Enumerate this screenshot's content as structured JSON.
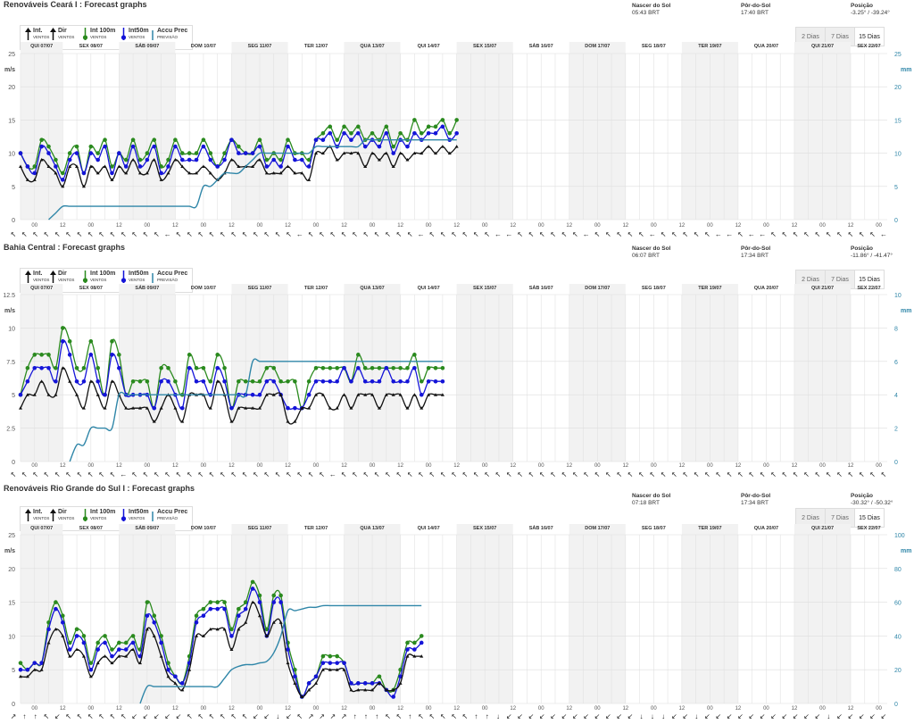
{
  "ranges": {
    "days": "2 Dias",
    "week": "7 Dias",
    "fifteen": "15 Dias",
    "active": "15 Dias"
  },
  "legend": {
    "int": "Int.",
    "int_sub": "VENTOS",
    "dir": "Dir",
    "dir_sub": "VENTOS",
    "int100": "Int 100m",
    "int100_sub": "VENTOS",
    "int50": "Int50m",
    "int50_sub": "VENTOS",
    "accu": "Accu Prec",
    "accu_sub": "PREVISÃO"
  },
  "colors": {
    "int": "#111111",
    "int100": "#2a8a1e",
    "int50": "#1414d8",
    "accu": "#2f86a8"
  },
  "days": [
    "QUI 07/07",
    "SEX 08/07",
    "SÁB 09/07",
    "DOM 10/07",
    "SEG 11/07",
    "TER 12/07",
    "QUA 13/07",
    "QUI 14/07",
    "SEX 15/07",
    "SÁB 16/07",
    "DOM 17/07",
    "SEG 18/07",
    "TER 19/07",
    "QUA 20/07",
    "QUI 21/07",
    "SEX 22/07"
  ],
  "hour_labels": [
    "00",
    "12"
  ],
  "panels": [
    {
      "title": "Renováveis Ceará I : Forecast graphs",
      "sun": {
        "rise_label": "Nascer do Sol",
        "rise": "05:43 BRT",
        "set_label": "Pôr-do-Sol",
        "set": "17:40 BRT",
        "pos_label": "Posição",
        "pos": "-3.25° / -39.24°"
      },
      "chart_data": {
        "type": "line",
        "x_unit": "3-hour steps from 07/07 18:00",
        "y_left": {
          "label": "m/s",
          "ticks": [
            "0",
            "5",
            "10",
            "15",
            "20",
            "25"
          ],
          "lim": [
            0,
            25
          ]
        },
        "y_right": {
          "label": "mm",
          "ticks": [
            "0",
            "5",
            "10",
            "15",
            "20",
            "25"
          ],
          "lim": [
            0,
            25
          ]
        },
        "series": [
          {
            "name": "Int 100m",
            "values": [
              10,
              8,
              8,
              12,
              11,
              9,
              7,
              10,
              11,
              7,
              11,
              10,
              12,
              8,
              10,
              9,
              12,
              9,
              10,
              12,
              8,
              9,
              12,
              10,
              10,
              10,
              12,
              10,
              8,
              10,
              12,
              11,
              10,
              10,
              12,
              9,
              10,
              9,
              12,
              10,
              10,
              9,
              12,
              13,
              14,
              12,
              14,
              13,
              14,
              12,
              13,
              12,
              14,
              11,
              13,
              12,
              15,
              13,
              14,
              14,
              15,
              13,
              15
            ]
          },
          {
            "name": "Int50m",
            "values": [
              10,
              8,
              7,
              11,
              10,
              8,
              6,
              9,
              10,
              7,
              10,
              9,
              11,
              7,
              10,
              8,
              11,
              8,
              9,
              11,
              7,
              8,
              11,
              9,
              9,
              9,
              11,
              9,
              8,
              9,
              12,
              10,
              10,
              10,
              11,
              8,
              9,
              8,
              11,
              9,
              9,
              8,
              12,
              12,
              13,
              11,
              13,
              12,
              13,
              11,
              12,
              11,
              13,
              10,
              12,
              11,
              13,
              12,
              13,
              13,
              14,
              12,
              13
            ]
          },
          {
            "name": "Int.",
            "values": [
              8,
              6,
              6,
              9,
              8,
              7,
              5,
              8,
              8,
              5,
              8,
              7,
              8,
              6,
              8,
              7,
              9,
              7,
              7,
              9,
              6,
              7,
              9,
              8,
              7,
              7,
              8,
              7,
              6,
              7,
              9,
              8,
              8,
              8,
              9,
              7,
              7,
              7,
              8,
              7,
              7,
              6,
              10,
              10,
              11,
              9,
              10,
              10,
              10,
              8,
              10,
              9,
              10,
              8,
              10,
              9,
              10,
              10,
              11,
              10,
              11,
              10,
              11
            ]
          },
          {
            "name": "Accu Prec",
            "values": [
              0,
              0,
              0,
              0,
              0,
              1,
              2,
              2,
              2,
              2,
              2,
              2,
              2,
              2,
              2,
              2,
              2,
              2,
              2,
              2,
              2,
              2,
              2,
              2,
              2,
              2,
              5,
              5,
              6,
              7,
              7,
              7,
              8,
              9,
              10,
              10,
              10,
              10,
              10,
              10,
              10,
              10,
              11,
              11,
              11,
              11,
              11,
              11,
              11,
              12,
              12,
              12,
              12,
              12,
              12,
              12,
              12,
              12,
              12,
              12,
              12,
              12,
              12
            ]
          }
        ]
      }
    },
    {
      "title": "Bahia Central : Forecast graphs",
      "sun": {
        "rise_label": "Nascer do Sol",
        "rise": "06:07 BRT",
        "set_label": "Pôr-do-Sol",
        "set": "17:34 BRT",
        "pos_label": "Posição",
        "pos": "-11.86° / -41.47°"
      },
      "chart_data": {
        "type": "line",
        "x_unit": "3-hour steps from 07/07 18:00",
        "y_left": {
          "label": "m/s",
          "ticks": [
            "0",
            "2.5",
            "5",
            "7.5",
            "10",
            "12.5"
          ],
          "lim": [
            0,
            12.5
          ]
        },
        "y_right": {
          "label": "mm",
          "ticks": [
            "0",
            "2",
            "4",
            "6",
            "8",
            "10"
          ],
          "lim": [
            0,
            10
          ]
        },
        "series": [
          {
            "name": "Int 100m",
            "values": [
              5,
              7,
              8,
              8,
              8,
              7,
              10,
              9,
              7,
              7,
              9,
              7,
              5,
              9,
              8,
              5,
              6,
              6,
              6,
              4,
              7,
              7,
              6,
              5,
              8,
              7,
              7,
              6,
              8,
              7,
              4,
              6,
              6,
              6,
              6,
              7,
              7,
              6,
              6,
              6,
              4,
              6,
              7,
              7,
              7,
              7,
              7,
              6,
              8,
              7,
              7,
              7,
              7,
              7,
              7,
              7,
              8,
              6,
              7,
              7,
              7
            ]
          },
          {
            "name": "Int50m",
            "values": [
              5,
              6,
              7,
              7,
              7,
              6,
              9,
              8,
              6,
              6,
              8,
              6,
              5,
              8,
              7,
              5,
              5,
              5,
              5,
              4,
              6,
              6,
              5,
              4,
              7,
              6,
              6,
              5,
              7,
              6,
              4,
              5,
              5,
              5,
              5,
              6,
              6,
              5,
              4,
              4,
              4,
              5,
              6,
              6,
              6,
              6,
              7,
              6,
              7,
              6,
              6,
              6,
              7,
              6,
              6,
              6,
              7,
              5,
              6,
              6,
              6
            ]
          },
          {
            "name": "Int.",
            "values": [
              4,
              5,
              5,
              6,
              5,
              5,
              7,
              6,
              5,
              4,
              6,
              5,
              4,
              6,
              5,
              4,
              4,
              4,
              4,
              3,
              4,
              5,
              4,
              3,
              5,
              5,
              5,
              4,
              6,
              5,
              3,
              4,
              4,
              4,
              4,
              5,
              5,
              5,
              3,
              3,
              4,
              4,
              5,
              5,
              4,
              4,
              5,
              4,
              5,
              5,
              5,
              4,
              5,
              5,
              5,
              4,
              5,
              4,
              5,
              5,
              5
            ]
          },
          {
            "name": "Accu Prec",
            "values": [
              0,
              0,
              0,
              0,
              0,
              0,
              0,
              0,
              1,
              1,
              2,
              2,
              2,
              2,
              4,
              4,
              4,
              4,
              4,
              4,
              4,
              4,
              4,
              4,
              4,
              4,
              4,
              4,
              4,
              4,
              4,
              4,
              4,
              6,
              6,
              6,
              6,
              6,
              6,
              6,
              6,
              6,
              6,
              6,
              6,
              6,
              6,
              6,
              6,
              6,
              6,
              6,
              6,
              6,
              6,
              6,
              6,
              6,
              6,
              6,
              6
            ]
          }
        ]
      }
    },
    {
      "title": "Renováveis Rio Grande do Sul I : Forecast graphs",
      "sun": {
        "rise_label": "Nascer do Sol",
        "rise": "07:18 BRT",
        "set_label": "Pôr-do-Sol",
        "set": "17:34 BRT",
        "pos_label": "Posição",
        "pos": "-30.32° / -50.32°"
      },
      "chart_data": {
        "type": "line",
        "x_unit": "3-hour steps from 07/07 18:00",
        "y_left": {
          "label": "m/s",
          "ticks": [
            "0",
            "5",
            "10",
            "15",
            "20",
            "25"
          ],
          "lim": [
            0,
            25
          ]
        },
        "y_right": {
          "label": "mm",
          "ticks": [
            "0",
            "20",
            "40",
            "60",
            "80",
            "100"
          ],
          "lim": [
            0,
            100
          ]
        },
        "series": [
          {
            "name": "Int 100m",
            "values": [
              6,
              5,
              6,
              6,
              12,
              15,
              13,
              9,
              11,
              10,
              6,
              9,
              10,
              8,
              9,
              9,
              10,
              8,
              15,
              13,
              10,
              6,
              4,
              3,
              7,
              13,
              14,
              15,
              15,
              15,
              11,
              14,
              15,
              18,
              16,
              11,
              16,
              16,
              9,
              5,
              1,
              3,
              4,
              7,
              7,
              7,
              6,
              3,
              3,
              3,
              3,
              4,
              2,
              2,
              5,
              9,
              9,
              10
            ]
          },
          {
            "name": "Int50m",
            "values": [
              5,
              5,
              6,
              6,
              11,
              14,
              12,
              8,
              10,
              9,
              5,
              8,
              9,
              7,
              8,
              8,
              9,
              7,
              13,
              12,
              9,
              5,
              4,
              3,
              6,
              12,
              13,
              14,
              14,
              14,
              10,
              13,
              14,
              17,
              15,
              10,
              15,
              15,
              8,
              4,
              1,
              3,
              4,
              6,
              6,
              6,
              6,
              3,
              3,
              3,
              3,
              3,
              2,
              1,
              4,
              8,
              8,
              9
            ]
          },
          {
            "name": "Int.",
            "values": [
              4,
              4,
              5,
              5,
              9,
              11,
              10,
              7,
              8,
              7,
              4,
              6,
              7,
              6,
              7,
              7,
              8,
              6,
              11,
              10,
              7,
              4,
              3,
              2,
              5,
              10,
              10,
              11,
              11,
              11,
              8,
              11,
              12,
              15,
              13,
              10,
              12,
              12,
              6,
              3,
              1,
              2,
              3,
              5,
              5,
              5,
              5,
              2,
              2,
              2,
              2,
              3,
              2,
              2,
              3,
              7,
              7,
              7
            ]
          },
          {
            "name": "Accu Prec",
            "values": [
              0,
              0,
              0,
              0,
              0,
              0,
              0,
              0,
              0,
              0,
              0,
              0,
              0,
              0,
              0,
              0,
              0,
              0,
              10,
              10,
              10,
              10,
              10,
              10,
              10,
              10,
              10,
              10,
              10,
              15,
              20,
              22,
              23,
              23,
              24,
              25,
              30,
              40,
              55,
              55,
              56,
              57,
              57,
              58,
              58,
              58,
              58,
              58,
              58,
              58,
              58,
              58,
              58,
              58,
              58,
              58,
              58,
              58
            ]
          }
        ]
      }
    }
  ]
}
